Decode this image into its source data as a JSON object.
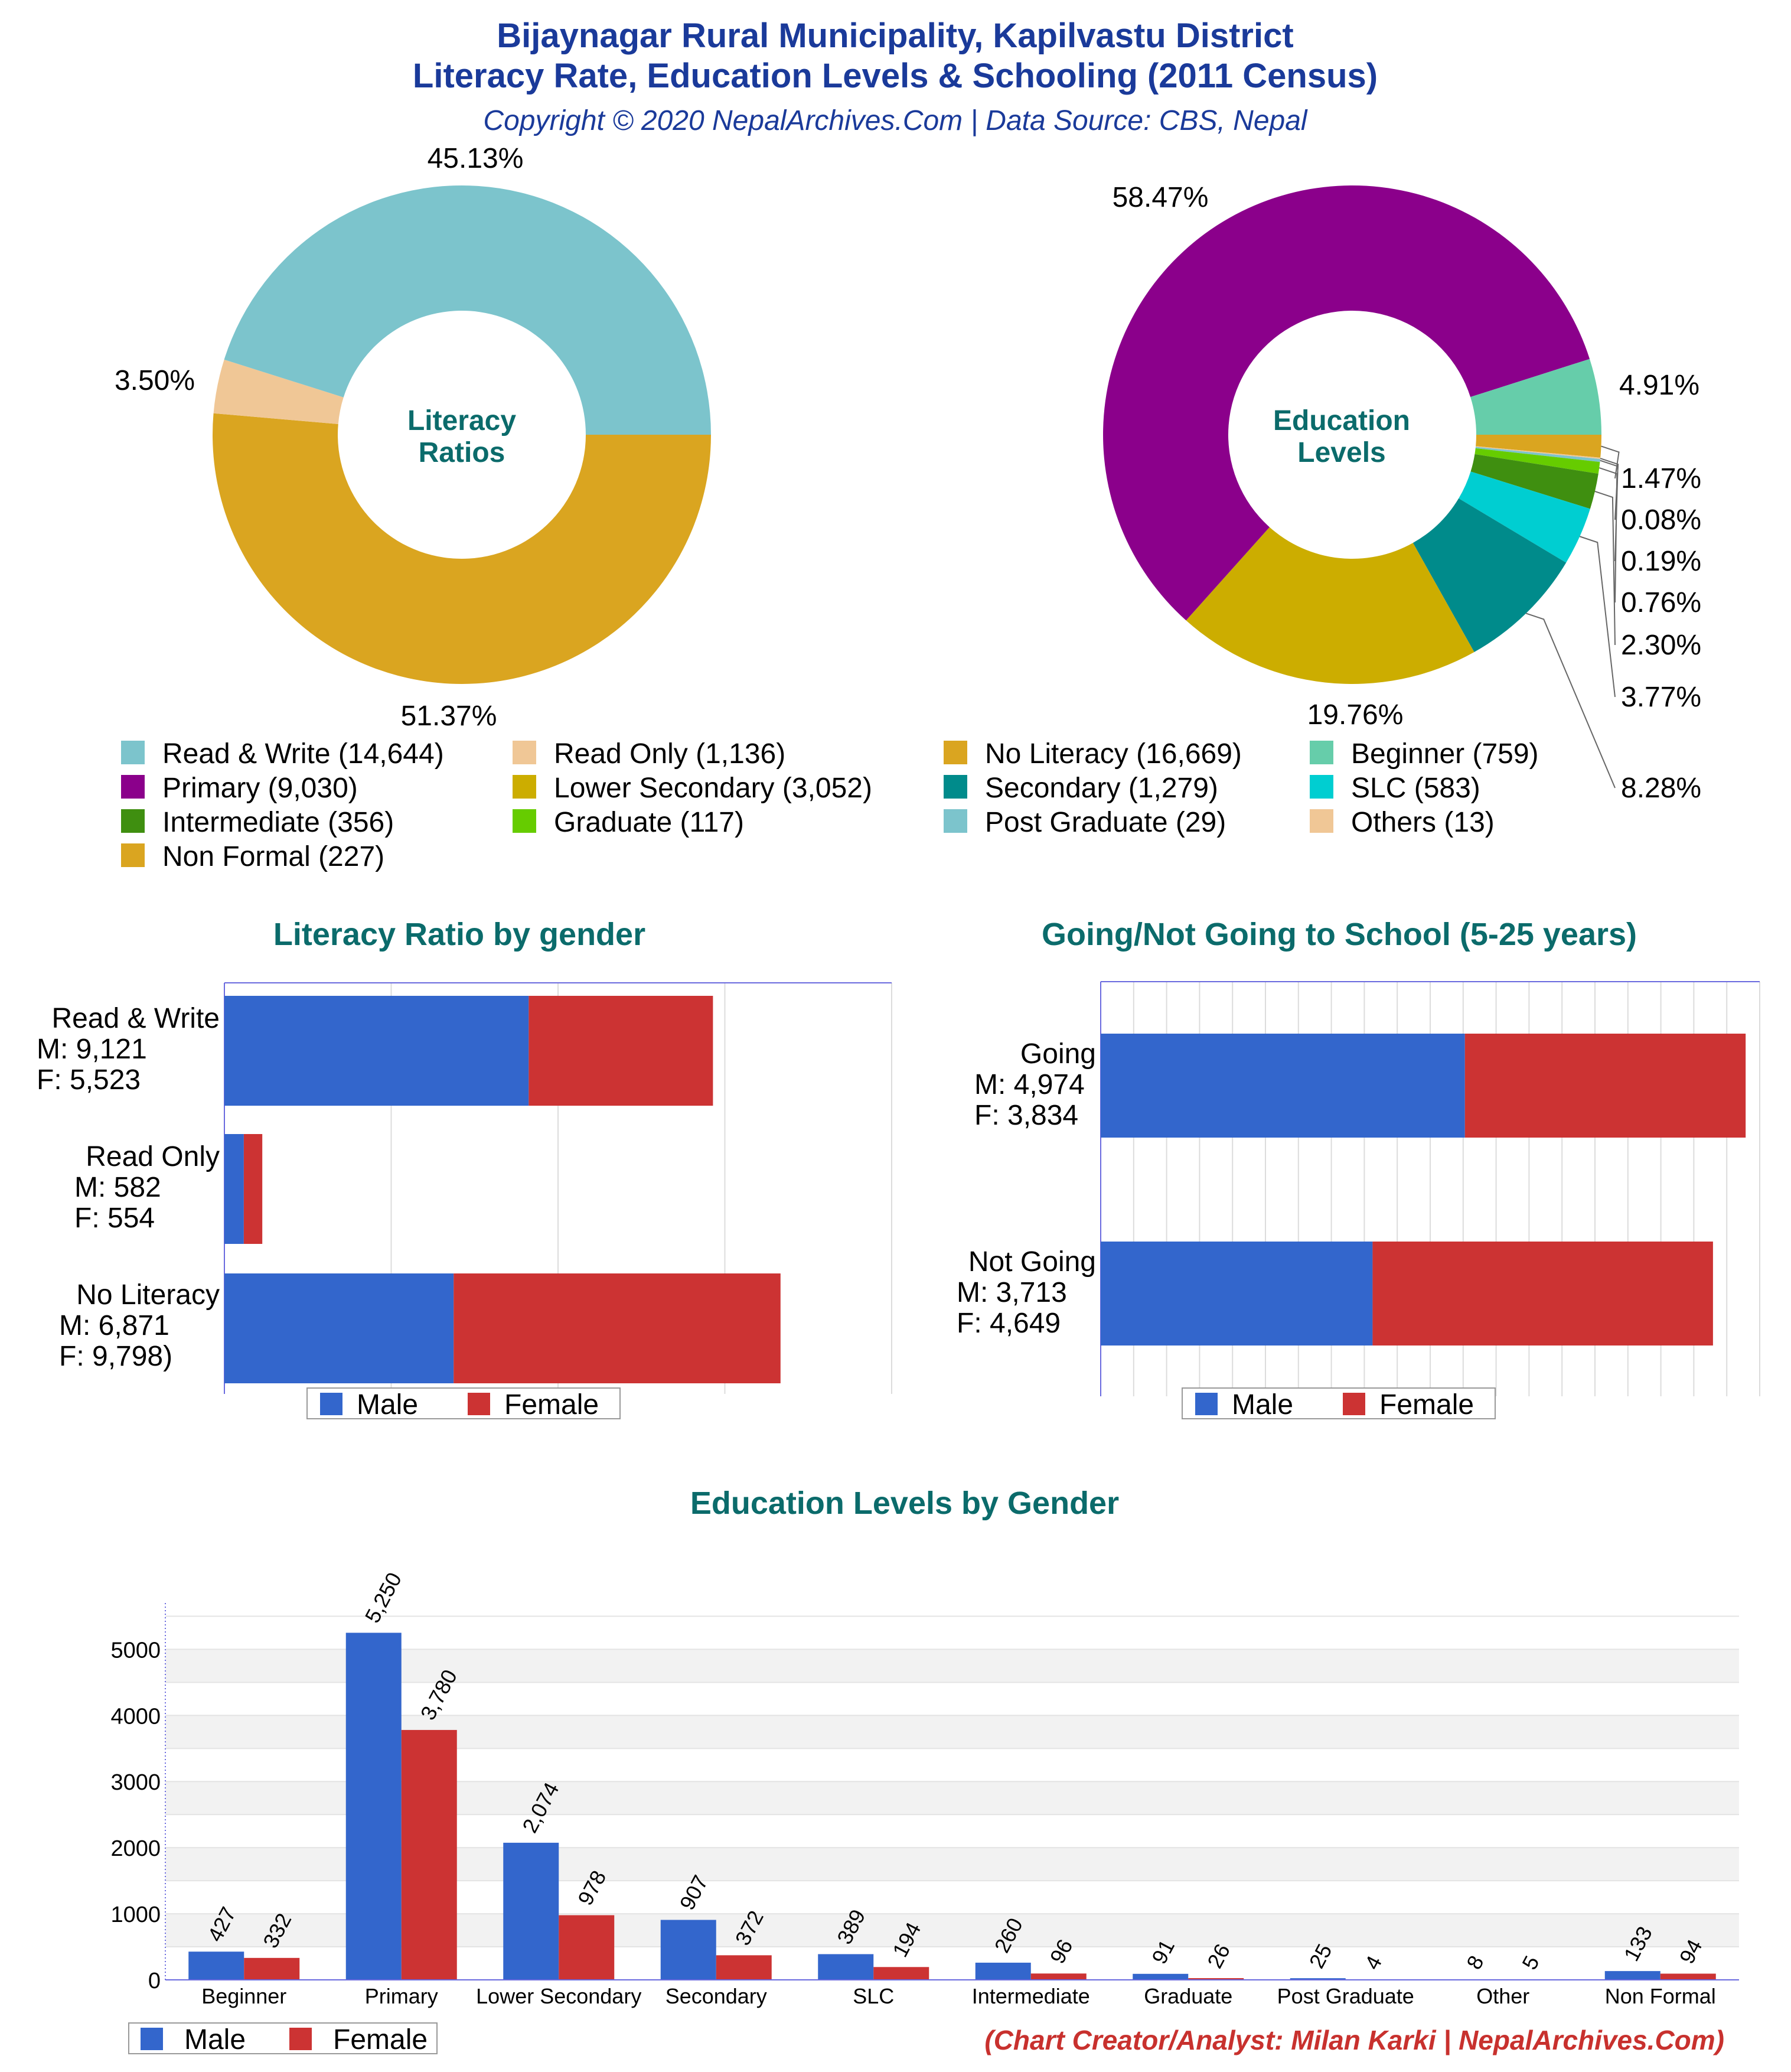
{
  "header": {
    "title_line1": "Bijaynagar Rural Municipality, Kapilvastu District",
    "title_line2": "Literacy Rate, Education Levels & Schooling (2011 Census)",
    "copyright": "Copyright © 2020 NepalArchives.Com | Data Source: CBS, Nepal"
  },
  "footer": {
    "credit": "(Chart Creator/Analyst: Milan Karki | NepalArchives.Com)"
  },
  "colors": {
    "title_blue": "#1a3a9a",
    "teal_title": "#0b6b6b",
    "credit_red": "#c8312e",
    "male": "#3366cc",
    "female": "#cc3333"
  },
  "legend": [
    {
      "label": "Read & Write (14,644)",
      "color": "#7cc4cc"
    },
    {
      "label": "Read Only (1,136)",
      "color": "#f0c796"
    },
    {
      "label": "No Literacy (16,669)",
      "color": "#daa520"
    },
    {
      "label": "Beginner (759)",
      "color": "#66cdaa"
    },
    {
      "label": "Primary (9,030)",
      "color": "#8b008b"
    },
    {
      "label": "Lower Secondary (3,052)",
      "color": "#ccad00"
    },
    {
      "label": "Secondary (1,279)",
      "color": "#008b8b"
    },
    {
      "label": "SLC (583)",
      "color": "#00ced1"
    },
    {
      "label": "Intermediate (356)",
      "color": "#3f8f10"
    },
    {
      "label": "Graduate (117)",
      "color": "#66cc00"
    },
    {
      "label": "Post Graduate (29)",
      "color": "#7cc4cc"
    },
    {
      "label": "Others (13)",
      "color": "#f0c796"
    },
    {
      "label": "Non Formal (227)",
      "color": "#daa520"
    }
  ],
  "chart_data": [
    {
      "type": "pie",
      "title": "Literacy Ratios",
      "labels": [
        "Read & Write",
        "Read Only",
        "No Literacy"
      ],
      "values": [
        14644,
        1136,
        16669
      ],
      "percent_labels": [
        "45.13%",
        "3.50%",
        "51.37%"
      ],
      "colors": [
        "#7cc4cc",
        "#f0c796",
        "#daa520"
      ]
    },
    {
      "type": "pie",
      "title": "Education Levels",
      "labels": [
        "Beginner",
        "Primary",
        "Lower Secondary",
        "Secondary",
        "SLC",
        "Intermediate",
        "Graduate",
        "Post Graduate",
        "Others",
        "Non Formal"
      ],
      "values": [
        759,
        9030,
        3052,
        1279,
        583,
        356,
        117,
        29,
        13,
        227
      ],
      "percent_labels": [
        "4.91%",
        "58.47%",
        "19.76%",
        "8.28%",
        "3.77%",
        "2.30%",
        "0.76%",
        "0.19%",
        "0.08%",
        "1.47%"
      ],
      "colors": [
        "#66cdaa",
        "#8b008b",
        "#ccad00",
        "#008b8b",
        "#00ced1",
        "#3f8f10",
        "#66cc00",
        "#7cc4cc",
        "#f0c796",
        "#daa520"
      ]
    },
    {
      "type": "bar",
      "orientation": "horizontal",
      "stacked": true,
      "title": "Literacy Ratio by gender",
      "categories": [
        "Read & Write",
        "Read Only",
        "No Literacy"
      ],
      "category_labels": [
        [
          "Read & Write",
          "M: 9,121",
          "F: 5,523"
        ],
        [
          "Read Only",
          "M: 582",
          "F: 554"
        ],
        [
          "No Literacy",
          "M: 6,871",
          "F: 9,798)"
        ]
      ],
      "series": [
        {
          "name": "Male",
          "values": [
            9121,
            582,
            6871
          ]
        },
        {
          "name": "Female",
          "values": [
            5523,
            554,
            9798
          ]
        }
      ],
      "xlim": [
        0,
        20000
      ],
      "legend": [
        "Male",
        "Female"
      ]
    },
    {
      "type": "bar",
      "orientation": "horizontal",
      "stacked": true,
      "title": "Going/Not Going to School (5-25 years)",
      "categories": [
        "Going",
        "Not Going"
      ],
      "category_labels": [
        [
          "Going",
          "M: 4,974",
          "F: 3,834"
        ],
        [
          "Not Going",
          "M: 3,713",
          "F: 4,649"
        ]
      ],
      "series": [
        {
          "name": "Male",
          "values": [
            4974,
            3713
          ]
        },
        {
          "name": "Female",
          "values": [
            3834,
            4649
          ]
        }
      ],
      "xlim": [
        0,
        9000
      ],
      "legend": [
        "Male",
        "Female"
      ]
    },
    {
      "type": "bar",
      "orientation": "vertical",
      "title": "Education Levels by Gender",
      "categories": [
        "Beginner",
        "Primary",
        "Lower Secondary",
        "Secondary",
        "SLC",
        "Intermediate",
        "Graduate",
        "Post Graduate",
        "Other",
        "Non Formal"
      ],
      "series": [
        {
          "name": "Male",
          "values": [
            427,
            5250,
            2074,
            907,
            389,
            260,
            91,
            25,
            8,
            133
          ],
          "labels": [
            "427",
            "5,250",
            "2,074",
            "907",
            "389",
            "260",
            "91",
            "25",
            "8",
            "133"
          ]
        },
        {
          "name": "Female",
          "values": [
            332,
            3780,
            978,
            372,
            194,
            96,
            26,
            4,
            5,
            94
          ],
          "labels": [
            "332",
            "3,780",
            "978",
            "372",
            "194",
            "96",
            "26",
            "4",
            "5",
            "94"
          ]
        }
      ],
      "yticks": [
        "0",
        "1000",
        "2000",
        "3000",
        "4000",
        "5000"
      ],
      "ylim": [
        0,
        5700
      ],
      "legend": [
        "Male",
        "Female"
      ]
    }
  ]
}
